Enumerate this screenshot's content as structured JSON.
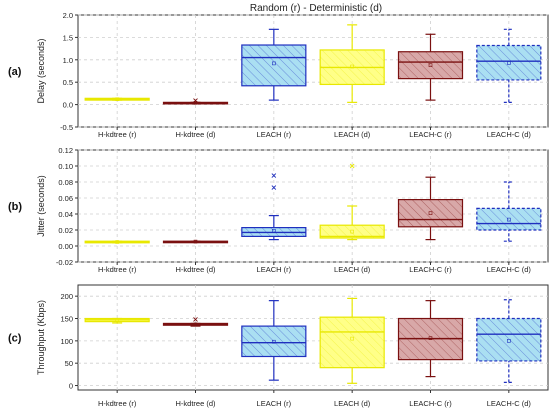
{
  "figure": {
    "title": "Random (r) - Deterministic (d)"
  },
  "chart_data": [
    {
      "type": "box",
      "panel_label": "(a)",
      "ylabel": "Delay (seconds)",
      "ylim": [
        -0.5,
        2.0
      ],
      "yticks": [
        -0.5,
        0.0,
        0.5,
        1.0,
        1.5,
        2.0
      ],
      "ytick_labels": [
        "-0.5",
        "0.0",
        "0.5",
        "1.0",
        "1.5",
        "2.0"
      ],
      "grid": true,
      "categories": [
        "H-kdtree (r)",
        "H-kdtree (d)",
        "LEACH (r)",
        "LEACH (d)",
        "LEACH-C (r)",
        "LEACH-C (d)"
      ],
      "series": [
        {
          "whisker_low": 0.1,
          "q1": 0.1,
          "median": 0.12,
          "q3": 0.14,
          "whisker_high": 0.14,
          "mean": 0.12,
          "outliers": [],
          "color": "#e8e800",
          "fill": "#ffff66",
          "pattern": "none",
          "dashed": false
        },
        {
          "whisker_low": 0.02,
          "q1": 0.02,
          "median": 0.03,
          "q3": 0.05,
          "whisker_high": 0.05,
          "mean": 0.04,
          "outliers": [
            0.09
          ],
          "color": "#7a1010",
          "fill": "#c08080",
          "pattern": "none",
          "dashed": false
        },
        {
          "whisker_low": 0.1,
          "q1": 0.42,
          "median": 1.05,
          "q3": 1.33,
          "whisker_high": 1.68,
          "mean": 0.92,
          "outliers": [],
          "color": "#1f2fbf",
          "fill": "#aadff2",
          "pattern": "hatch",
          "dashed": false
        },
        {
          "whisker_low": 0.05,
          "q1": 0.45,
          "median": 0.83,
          "q3": 1.22,
          "whisker_high": 1.78,
          "mean": 0.85,
          "outliers": [],
          "color": "#e8e800",
          "fill": "#ffff88",
          "pattern": "hatch",
          "dashed": false
        },
        {
          "whisker_low": 0.1,
          "q1": 0.58,
          "median": 0.95,
          "q3": 1.18,
          "whisker_high": 1.57,
          "mean": 0.88,
          "outliers": [],
          "color": "#7a1010",
          "fill": "#d8a8a8",
          "pattern": "hatch",
          "dashed": false
        },
        {
          "whisker_low": 0.05,
          "q1": 0.55,
          "median": 0.97,
          "q3": 1.32,
          "whisker_high": 1.68,
          "mean": 0.93,
          "outliers": [],
          "color": "#1f2fbf",
          "fill": "#aadff2",
          "pattern": "hatch",
          "dashed": true
        }
      ]
    },
    {
      "type": "box",
      "panel_label": "(b)",
      "ylabel": "Jitter (seconds)",
      "ylim": [
        -0.02,
        0.12
      ],
      "yticks": [
        -0.02,
        0.0,
        0.02,
        0.04,
        0.06,
        0.08,
        0.1,
        0.12
      ],
      "ytick_labels": [
        "-0.02",
        "0.00",
        "0.02",
        "0.04",
        "0.06",
        "0.08",
        "0.10",
        "0.12"
      ],
      "grid": true,
      "categories": [
        "H-kdtree (r)",
        "H-kdtree (d)",
        "LEACH (r)",
        "LEACH (d)",
        "LEACH-C (r)",
        "LEACH-C (d)"
      ],
      "series": [
        {
          "whisker_low": 0.004,
          "q1": 0.004,
          "median": 0.005,
          "q3": 0.006,
          "whisker_high": 0.006,
          "mean": 0.005,
          "outliers": [],
          "color": "#e8e800",
          "fill": "#ffff66",
          "pattern": "none",
          "dashed": false
        },
        {
          "whisker_low": 0.005,
          "q1": 0.005,
          "median": 0.005,
          "q3": 0.006,
          "whisker_high": 0.006,
          "mean": 0.0055,
          "outliers": [],
          "color": "#7a1010",
          "fill": "#c08080",
          "pattern": "none",
          "dashed": false
        },
        {
          "whisker_low": 0.008,
          "q1": 0.012,
          "median": 0.017,
          "q3": 0.023,
          "whisker_high": 0.038,
          "mean": 0.019,
          "outliers": [
            0.073,
            0.088
          ],
          "color": "#1f2fbf",
          "fill": "#aadff2",
          "pattern": "hatch",
          "dashed": false
        },
        {
          "whisker_low": 0.008,
          "q1": 0.01,
          "median": 0.012,
          "q3": 0.026,
          "whisker_high": 0.05,
          "mean": 0.018,
          "outliers": [
            0.1
          ],
          "color": "#e8e800",
          "fill": "#ffff88",
          "pattern": "hatch",
          "dashed": false
        },
        {
          "whisker_low": 0.008,
          "q1": 0.024,
          "median": 0.033,
          "q3": 0.058,
          "whisker_high": 0.086,
          "mean": 0.041,
          "outliers": [],
          "color": "#7a1010",
          "fill": "#d8a8a8",
          "pattern": "hatch",
          "dashed": false
        },
        {
          "whisker_low": 0.006,
          "q1": 0.02,
          "median": 0.028,
          "q3": 0.047,
          "whisker_high": 0.08,
          "mean": 0.033,
          "outliers": [],
          "color": "#1f2fbf",
          "fill": "#aadff2",
          "pattern": "hatch",
          "dashed": true
        }
      ]
    },
    {
      "type": "box",
      "panel_label": "(c)",
      "ylabel": "Throughput (Kbps)",
      "ylim": [
        -10,
        225
      ],
      "yticks": [
        0,
        50,
        100,
        150,
        200
      ],
      "ytick_labels": [
        "0",
        "50",
        "100",
        "150",
        "200"
      ],
      "grid": true,
      "categories": [
        "H-kdtree (r)",
        "H-kdtree (d)",
        "LEACH (r)",
        "LEACH (d)",
        "LEACH-C (r)",
        "LEACH-C (d)"
      ],
      "series": [
        {
          "whisker_low": 140,
          "q1": 143,
          "median": 147,
          "q3": 150,
          "whisker_high": 150,
          "mean": 147,
          "outliers": [],
          "color": "#e8e800",
          "fill": "#ffff66",
          "pattern": "none",
          "dashed": false
        },
        {
          "whisker_low": 133,
          "q1": 135,
          "median": 137,
          "q3": 139,
          "whisker_high": 139,
          "mean": 137,
          "outliers": [
            148
          ],
          "color": "#7a1010",
          "fill": "#c08080",
          "pattern": "none",
          "dashed": false
        },
        {
          "whisker_low": 12,
          "q1": 65,
          "median": 96,
          "q3": 133,
          "whisker_high": 190,
          "mean": 98,
          "outliers": [],
          "color": "#1f2fbf",
          "fill": "#aadff2",
          "pattern": "hatch",
          "dashed": false
        },
        {
          "whisker_low": 5,
          "q1": 40,
          "median": 120,
          "q3": 153,
          "whisker_high": 195,
          "mean": 105,
          "outliers": [],
          "color": "#e8e800",
          "fill": "#ffff88",
          "pattern": "hatch",
          "dashed": false
        },
        {
          "whisker_low": 20,
          "q1": 58,
          "median": 105,
          "q3": 150,
          "whisker_high": 190,
          "mean": 106,
          "outliers": [],
          "color": "#7a1010",
          "fill": "#d8a8a8",
          "pattern": "hatch",
          "dashed": false
        },
        {
          "whisker_low": 7,
          "q1": 55,
          "median": 115,
          "q3": 150,
          "whisker_high": 192,
          "mean": 100,
          "outliers": [],
          "color": "#1f2fbf",
          "fill": "#aadff2",
          "pattern": "hatch",
          "dashed": true
        }
      ]
    }
  ]
}
